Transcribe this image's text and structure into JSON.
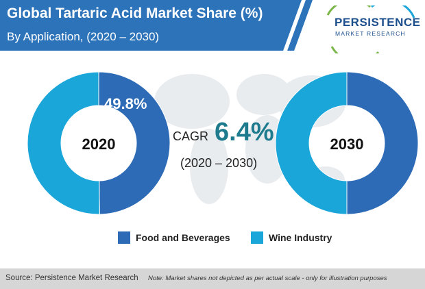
{
  "header": {
    "title": "Global Tartaric Acid Market Share (%)",
    "subtitle": "By Application, (2020 – 2030)"
  },
  "logo": {
    "name": "PERSISTENCE",
    "tagline": "MARKET RESEARCH"
  },
  "cagr": {
    "prefix": "CAGR",
    "value": "6.4%",
    "period": "(2020 – 2030)"
  },
  "colors": {
    "header": "#2d73b9",
    "food_and_beverages": "#2d6bb7",
    "wine_industry": "#1aa6d9",
    "cagr_accent": "#1e7b8e"
  },
  "chart_data": [
    {
      "type": "pie",
      "center_label": "2020",
      "slices": [
        {
          "label": "Food and Beverages",
          "value": 49.8,
          "value_label": "49.8%"
        },
        {
          "label": "Wine Industry",
          "value": 50.2
        }
      ]
    },
    {
      "type": "pie",
      "center_label": "2030",
      "slices": [
        {
          "label": "Food and Beverages",
          "value": 50
        },
        {
          "label": "Wine Industry",
          "value": 50
        }
      ]
    }
  ],
  "legend": [
    {
      "label": "Food and Beverages"
    },
    {
      "label": "Wine Industry"
    }
  ],
  "footer": {
    "source": "Source: Persistence Market Research",
    "note": "Note: Market shares not depicted as per actual scale - only for illustration purposes"
  }
}
